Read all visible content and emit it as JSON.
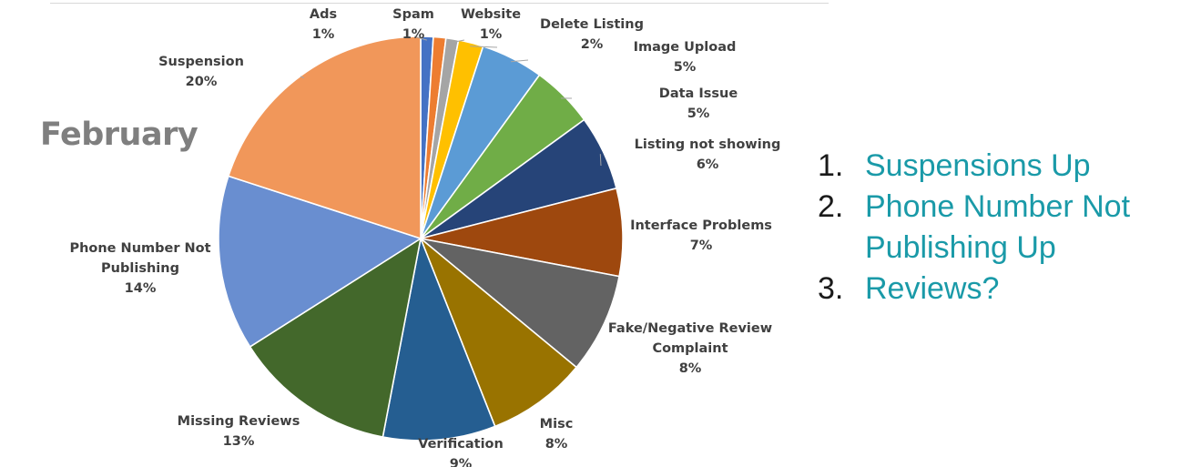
{
  "title": "February",
  "chart_data": {
    "type": "pie",
    "title": "February",
    "slices": [
      {
        "label": "Ads",
        "pct_label": "1%",
        "value": 1,
        "color": "#4472c4"
      },
      {
        "label": "Spam",
        "pct_label": "1%",
        "value": 1,
        "color": "#ed7d31"
      },
      {
        "label": "Website",
        "pct_label": "1%",
        "value": 1,
        "color": "#a5a5a5"
      },
      {
        "label": "Delete Listing",
        "pct_label": "2%",
        "value": 2,
        "color": "#ffc000"
      },
      {
        "label": "Image Upload",
        "pct_label": "5%",
        "value": 5,
        "color": "#5b9bd5"
      },
      {
        "label": "Data Issue",
        "pct_label": "5%",
        "value": 5,
        "color": "#70ad47"
      },
      {
        "label": "Listing not showing",
        "pct_label": "6%",
        "value": 6,
        "color": "#264478"
      },
      {
        "label": "Interface Problems",
        "pct_label": "7%",
        "value": 7,
        "color": "#9e480e"
      },
      {
        "label": "Fake/Negative Review Complaint",
        "pct_label": "8%",
        "value": 8,
        "color": "#636363"
      },
      {
        "label": "Misc",
        "pct_label": "8%",
        "value": 8,
        "color": "#997300"
      },
      {
        "label": "Verification",
        "pct_label": "9%",
        "value": 9,
        "color": "#255e91"
      },
      {
        "label": "Missing Reviews",
        "pct_label": "13%",
        "value": 13,
        "color": "#43682b"
      },
      {
        "label": "Phone Number Not Publishing",
        "pct_label": "14%",
        "value": 14,
        "color": "#698ed0"
      },
      {
        "label": "Suspension",
        "pct_label": "20%",
        "value": 20,
        "color": "#f1975a"
      }
    ]
  },
  "notes": [
    {
      "num": "1.",
      "text": "Suspensions Up"
    },
    {
      "num": "2.",
      "text": "Phone Number Not Publishing Up"
    },
    {
      "num": "3.",
      "text": "Reviews?"
    }
  ]
}
